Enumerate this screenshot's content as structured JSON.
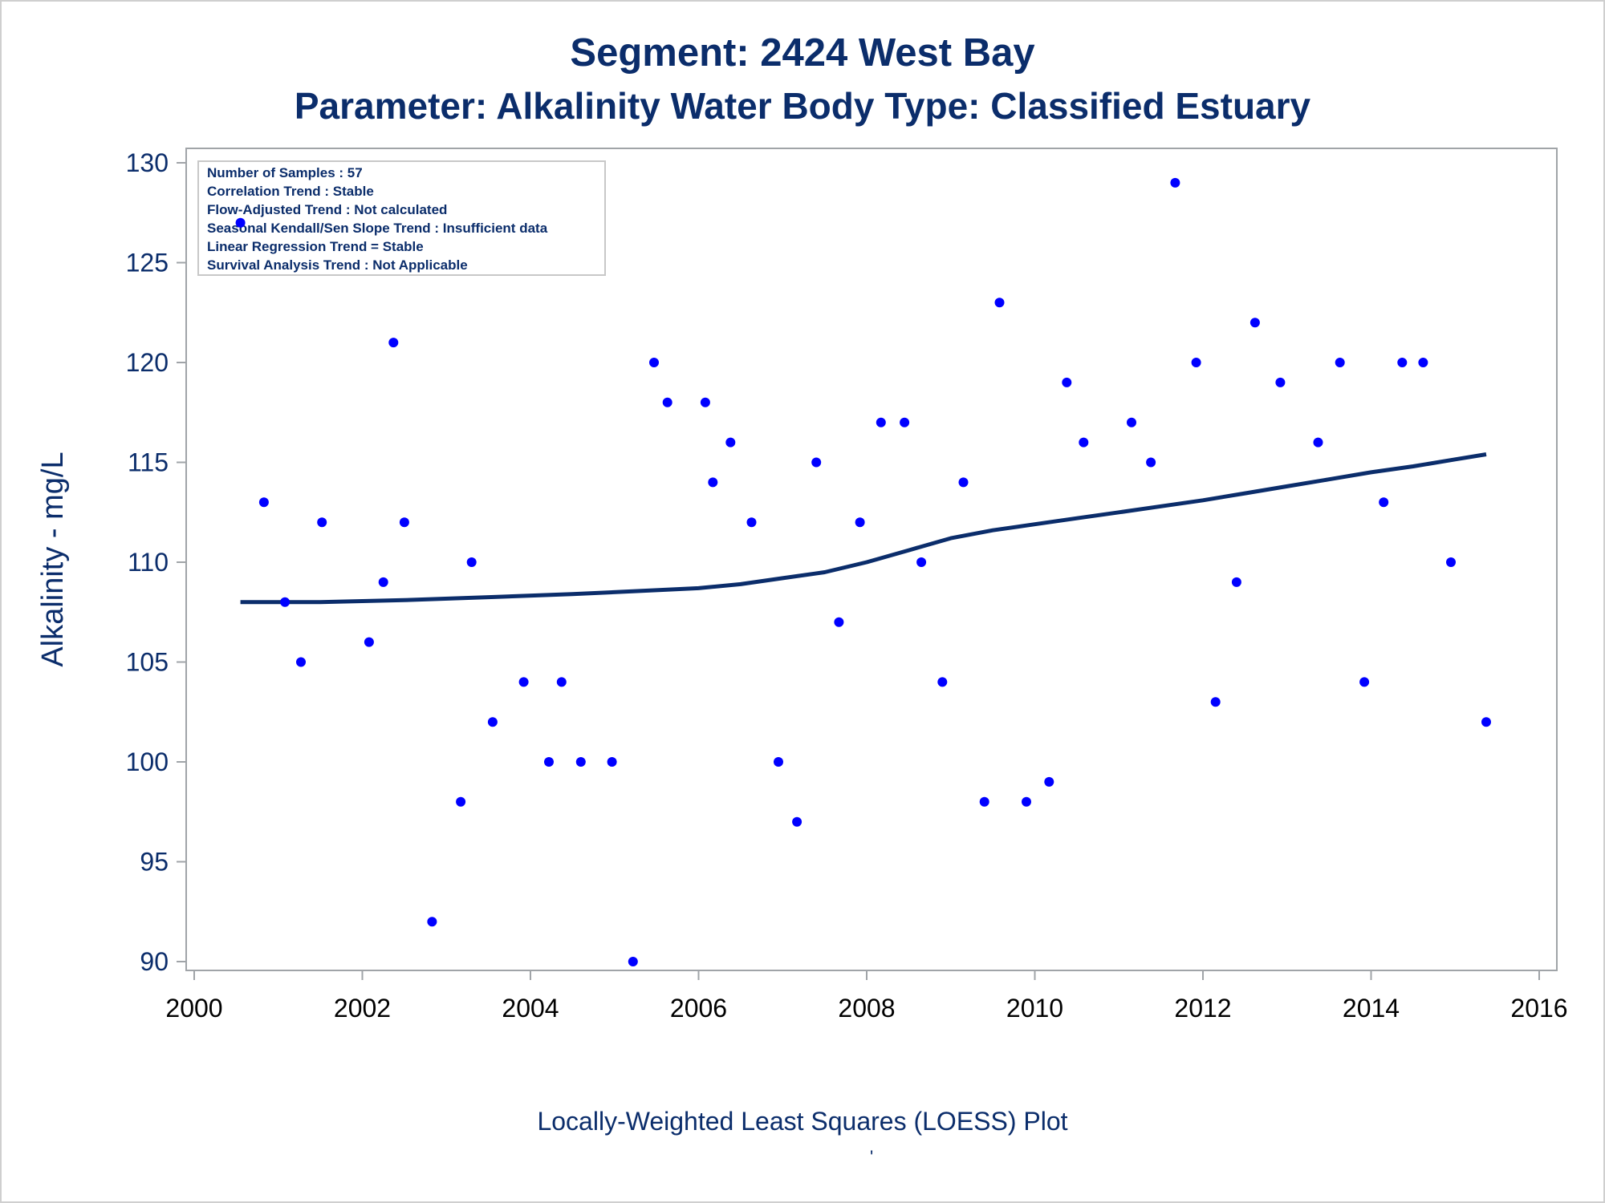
{
  "title_line1": "Segment: 2424  West Bay",
  "title_line2": "Parameter: Alkalinity   Water Body Type: Classified Estuary",
  "footnote": "Locally-Weighted Least Squares (LOESS) Plot",
  "footnote_mark": "'",
  "stats_box": [
    "Number of Samples : 57",
    "Correlation Trend : Stable",
    "Flow-Adjusted Trend : Not calculated",
    "Seasonal Kendall/Sen Slope Trend : Insufficient data",
    "Linear Regression Trend = Stable",
    "Survival Analysis Trend : Not Applicable"
  ],
  "colors": {
    "points": "#0000ff",
    "loess": "#0b2d6b",
    "text": "#0b2d6b",
    "axis": "#a0a4a8"
  },
  "chart_data": {
    "type": "scatter",
    "ylabel": "Alkalinity - mg/L",
    "xlabel": "",
    "xlim": [
      2000,
      2016
    ],
    "ylim": [
      90,
      130
    ],
    "xticks": [
      2000,
      2002,
      2004,
      2006,
      2008,
      2010,
      2012,
      2014,
      2016
    ],
    "yticks": [
      90,
      95,
      100,
      105,
      110,
      115,
      120,
      125,
      130
    ],
    "grid": false,
    "points": [
      [
        2000.55,
        127
      ],
      [
        2000.83,
        113
      ],
      [
        2001.08,
        108
      ],
      [
        2001.27,
        105
      ],
      [
        2001.52,
        112
      ],
      [
        2002.08,
        106
      ],
      [
        2002.25,
        109
      ],
      [
        2002.37,
        121
      ],
      [
        2002.5,
        112
      ],
      [
        2002.83,
        92
      ],
      [
        2003.17,
        98
      ],
      [
        2003.3,
        110
      ],
      [
        2003.55,
        102
      ],
      [
        2003.92,
        104
      ],
      [
        2004.22,
        100
      ],
      [
        2004.37,
        104
      ],
      [
        2004.6,
        100
      ],
      [
        2004.97,
        100
      ],
      [
        2005.22,
        90
      ],
      [
        2005.47,
        120
      ],
      [
        2005.63,
        118
      ],
      [
        2006.08,
        118
      ],
      [
        2006.17,
        114
      ],
      [
        2006.38,
        116
      ],
      [
        2006.63,
        112
      ],
      [
        2006.95,
        100
      ],
      [
        2007.17,
        97
      ],
      [
        2007.4,
        115
      ],
      [
        2007.67,
        107
      ],
      [
        2007.92,
        112
      ],
      [
        2008.17,
        117
      ],
      [
        2008.45,
        117
      ],
      [
        2008.65,
        110
      ],
      [
        2008.9,
        104
      ],
      [
        2009.15,
        114
      ],
      [
        2009.4,
        98
      ],
      [
        2009.58,
        123
      ],
      [
        2009.9,
        98
      ],
      [
        2010.17,
        99
      ],
      [
        2010.38,
        119
      ],
      [
        2010.58,
        116
      ],
      [
        2011.15,
        117
      ],
      [
        2011.38,
        115
      ],
      [
        2011.67,
        129
      ],
      [
        2011.92,
        120
      ],
      [
        2012.15,
        103
      ],
      [
        2012.4,
        109
      ],
      [
        2012.62,
        122
      ],
      [
        2012.92,
        119
      ],
      [
        2013.37,
        116
      ],
      [
        2013.63,
        120
      ],
      [
        2013.92,
        104
      ],
      [
        2014.15,
        113
      ],
      [
        2014.37,
        120
      ],
      [
        2014.62,
        120
      ],
      [
        2014.95,
        110
      ],
      [
        2015.37,
        102
      ]
    ],
    "loess_line": {
      "type": "line",
      "x": [
        2000.55,
        2001.5,
        2002.5,
        2003.5,
        2004.5,
        2005.5,
        2006.0,
        2006.5,
        2007.0,
        2007.5,
        2008.0,
        2008.5,
        2009.0,
        2009.5,
        2010.0,
        2010.5,
        2011.0,
        2011.5,
        2012.0,
        2012.5,
        2013.0,
        2013.5,
        2014.0,
        2014.5,
        2015.0,
        2015.37
      ],
      "y": [
        108.0,
        108.0,
        108.1,
        108.25,
        108.4,
        108.6,
        108.7,
        108.9,
        109.2,
        109.5,
        110.0,
        110.6,
        111.2,
        111.6,
        111.9,
        112.2,
        112.5,
        112.8,
        113.1,
        113.45,
        113.8,
        114.15,
        114.5,
        114.8,
        115.15,
        115.4
      ]
    }
  }
}
